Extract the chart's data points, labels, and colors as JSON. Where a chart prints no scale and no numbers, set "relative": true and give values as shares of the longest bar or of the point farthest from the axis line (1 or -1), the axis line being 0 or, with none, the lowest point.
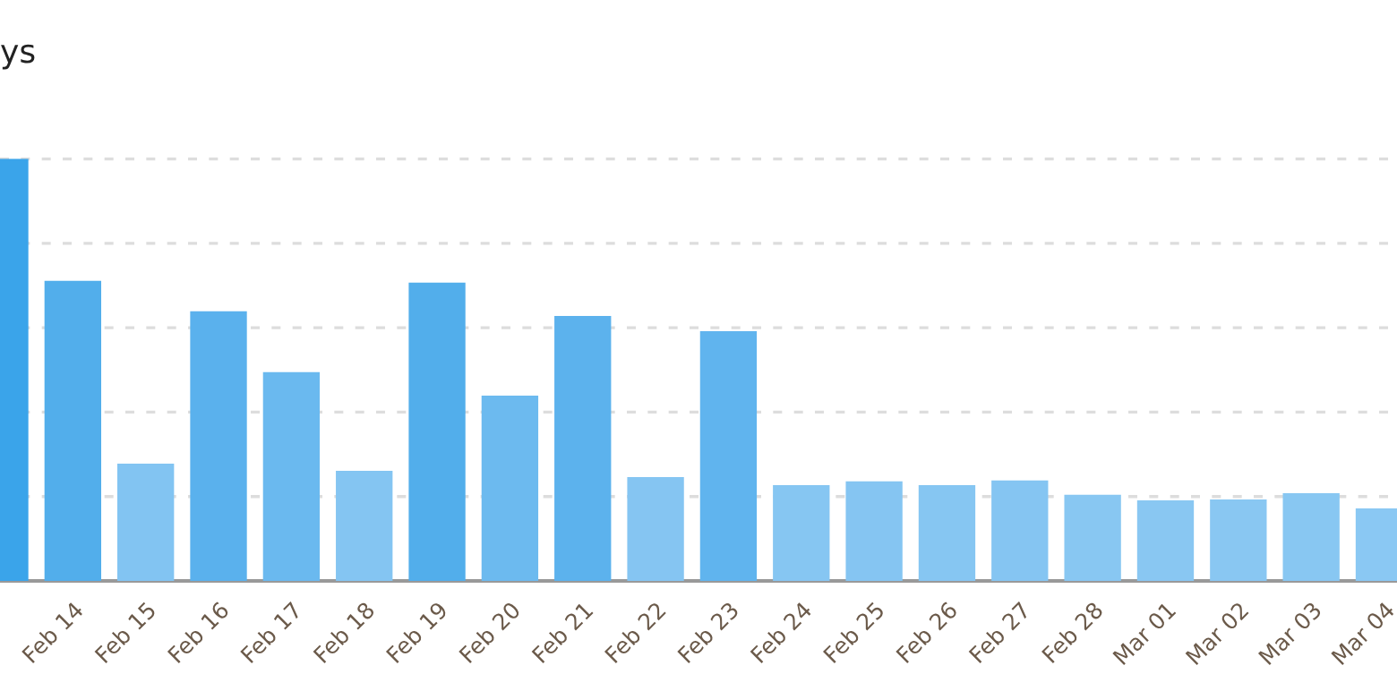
{
  "chart_data": {
    "type": "bar",
    "title": "ys",
    "relative": true,
    "grid": "y",
    "categories": [
      null,
      "Feb 14",
      "Feb 15",
      "Feb 16",
      "Feb 17",
      "Feb 18",
      "Feb 19",
      "Feb 20",
      "Feb 21",
      "Feb 22",
      "Feb 23",
      "Feb 24",
      "Feb 25",
      "Feb 26",
      "Feb 27",
      "Feb 28",
      "Mar 01",
      "Mar 02",
      "Mar 03",
      "Mar 04"
    ],
    "values": [
      1.0,
      0.711,
      0.278,
      0.639,
      0.495,
      0.261,
      0.707,
      0.439,
      0.628,
      0.246,
      0.592,
      0.227,
      0.236,
      0.227,
      0.238,
      0.204,
      0.191,
      0.193,
      0.208,
      0.172
    ],
    "colors": [
      "#3aa4ea",
      "#52aeeb",
      "#82c4f2",
      "#5ab1ed",
      "#6ab9ef",
      "#84c5f2",
      "#52aeeb",
      "#6cbaef",
      "#5cb2ed",
      "#85c5f2",
      "#60b4ee",
      "#86c6f2",
      "#85c5f2",
      "#86c6f2",
      "#85c5f2",
      "#88c7f2",
      "#89c7f2",
      "#89c7f2",
      "#88c7f2",
      "#8ac8f3"
    ]
  }
}
